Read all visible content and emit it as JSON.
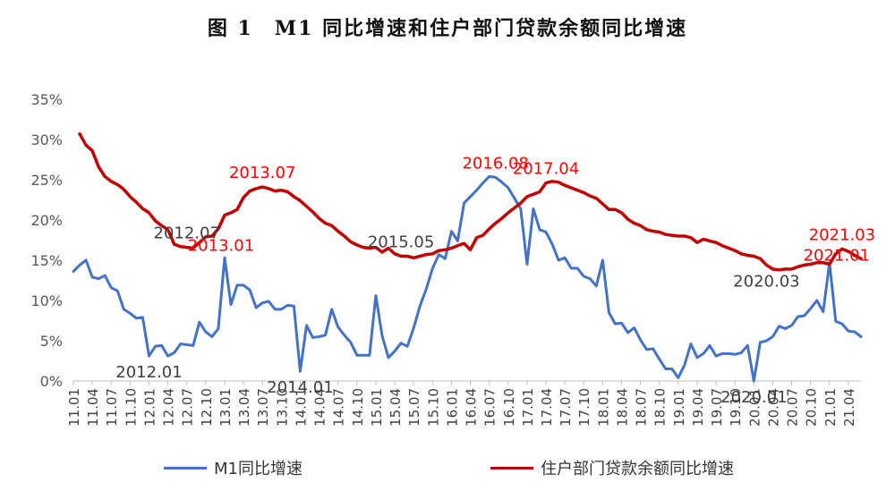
{
  "chart_data": {
    "type": "line",
    "title": "图 1　M1 同比增速和住户部门贷款余额同比增速",
    "ylim": [
      0,
      35
    ],
    "y_ticks": [
      "0%",
      "5%",
      "10%",
      "15%",
      "20%",
      "25%",
      "30%",
      "35%"
    ],
    "x_ticks": [
      "11.01",
      "11.04",
      "11.07",
      "11.10",
      "12.01",
      "12.04",
      "12.07",
      "12.10",
      "13.01",
      "13.04",
      "13.07",
      "13.10",
      "14.01",
      "14.04",
      "14.07",
      "14.10",
      "15.01",
      "15.04",
      "15.07",
      "15.10",
      "16.01",
      "16.04",
      "16.07",
      "16.10",
      "17.01",
      "17.04",
      "17.07",
      "17.10",
      "18.01",
      "18.04",
      "18.07",
      "18.10",
      "19.01",
      "19.04",
      "19.07",
      "19.10",
      "20.01",
      "20.04",
      "20.07",
      "20.10",
      "21.01",
      "21.04"
    ],
    "grid": false,
    "legend_position": "bottom",
    "series": [
      {
        "name": "M1同比增速",
        "color": "#4472C4",
        "values": [
          13.6,
          14.4,
          15.0,
          12.9,
          12.7,
          13.1,
          11.6,
          11.2,
          8.9,
          8.4,
          7.8,
          7.9,
          3.1,
          4.3,
          4.4,
          3.1,
          3.5,
          4.6,
          4.5,
          4.4,
          7.3,
          6.1,
          5.5,
          6.5,
          15.3,
          9.5,
          11.9,
          11.9,
          11.3,
          9.1,
          9.7,
          9.9,
          8.9,
          8.9,
          9.4,
          9.3,
          1.2,
          6.9,
          5.4,
          5.5,
          5.7,
          8.9,
          6.7,
          5.7,
          4.8,
          3.2,
          3.2,
          3.2,
          10.6,
          5.6,
          2.9,
          3.7,
          4.7,
          4.3,
          6.6,
          9.3,
          11.4,
          14.0,
          15.7,
          15.2,
          18.6,
          17.4,
          22.1,
          22.9,
          23.7,
          24.6,
          25.4,
          25.3,
          24.7,
          24.0,
          22.7,
          21.4,
          14.5,
          21.4,
          18.8,
          18.5,
          17.0,
          15.0,
          15.3,
          14.0,
          14.0,
          13.0,
          12.7,
          11.8,
          15.0,
          8.5,
          7.1,
          7.2,
          6.0,
          6.6,
          5.1,
          3.9,
          4.0,
          2.7,
          1.5,
          1.5,
          0.4,
          2.0,
          4.6,
          2.9,
          3.4,
          4.4,
          3.1,
          3.4,
          3.4,
          3.3,
          3.5,
          4.4,
          0.0,
          4.8,
          5.0,
          5.5,
          6.8,
          6.5,
          6.9,
          8.0,
          8.1,
          9.0,
          10.0,
          8.6,
          14.7,
          7.4,
          7.1,
          6.2,
          6.1,
          5.5
        ],
        "start": "11.01"
      },
      {
        "name": "住户部门贷款余额同比增速",
        "color": "#C00000",
        "values": [
          30.7,
          29.3,
          28.6,
          26.6,
          25.4,
          24.8,
          24.4,
          23.8,
          22.9,
          22.2,
          21.4,
          20.9,
          19.9,
          19.3,
          18.8,
          17.0,
          16.7,
          16.6,
          16.5,
          17.2,
          17.9,
          18.0,
          18.9,
          20.6,
          20.9,
          21.3,
          22.8,
          23.6,
          23.9,
          24.1,
          23.9,
          23.6,
          23.7,
          23.5,
          22.9,
          22.4,
          21.7,
          21.0,
          20.2,
          19.6,
          19.3,
          18.6,
          18.0,
          17.3,
          16.9,
          16.6,
          16.5,
          16.6,
          16.0,
          16.5,
          15.8,
          15.5,
          15.5,
          15.3,
          15.5,
          15.7,
          15.8,
          16.2,
          16.3,
          16.5,
          16.8,
          17.1,
          16.3,
          17.8,
          18.1,
          18.9,
          19.6,
          20.2,
          20.9,
          21.5,
          22.1,
          22.9,
          23.2,
          23.5,
          24.6,
          24.8,
          24.7,
          24.3,
          24.0,
          23.7,
          23.4,
          23.0,
          22.7,
          22.0,
          21.3,
          21.3,
          20.9,
          20.1,
          19.6,
          19.3,
          18.8,
          18.6,
          18.5,
          18.2,
          18.1,
          18.0,
          18.0,
          17.8,
          17.2,
          17.6,
          17.4,
          17.2,
          16.8,
          16.5,
          16.2,
          15.8,
          15.6,
          15.5,
          15.2,
          14.4,
          13.9,
          13.8,
          13.9,
          13.9,
          14.2,
          14.4,
          14.5,
          14.7,
          14.7,
          14.5,
          15.8,
          16.4,
          16.1,
          15.6,
          15.2
        ],
        "start": "11.02"
      }
    ],
    "annotations": [
      {
        "text": "2012.01",
        "color": "#404040",
        "series": 0,
        "index": 12,
        "place": "below"
      },
      {
        "text": "2012.07",
        "color": "#404040",
        "series": 1,
        "index": 17,
        "place": "above"
      },
      {
        "text": "2013.01",
        "color": "#FF0000",
        "series": 0,
        "index": 24,
        "place": "left-above"
      },
      {
        "text": "2013.07",
        "color": "#FF0000",
        "series": 1,
        "index": 29,
        "place": "above"
      },
      {
        "text": "2014.01",
        "color": "#404040",
        "series": 0,
        "index": 36,
        "place": "below"
      },
      {
        "text": "2015.05",
        "color": "#404040",
        "series": 1,
        "index": 51,
        "place": "above"
      },
      {
        "text": "2016.08",
        "color": "#FF0000",
        "series": 0,
        "index": 67,
        "place": "above"
      },
      {
        "text": "2017.04",
        "color": "#FF0000",
        "series": 1,
        "index": 74,
        "place": "above"
      },
      {
        "text": "2020.01",
        "color": "#404040",
        "series": 0,
        "index": 108,
        "place": "below"
      },
      {
        "text": "2020.03",
        "color": "#404040",
        "series": 1,
        "index": 109,
        "place": "below"
      },
      {
        "text": "2021.01",
        "color": "#FF0000",
        "series": 0,
        "index": 120,
        "place": "right-above"
      },
      {
        "text": "2021.03",
        "color": "#FF0000",
        "series": 1,
        "index": 121,
        "place": "above"
      }
    ]
  }
}
